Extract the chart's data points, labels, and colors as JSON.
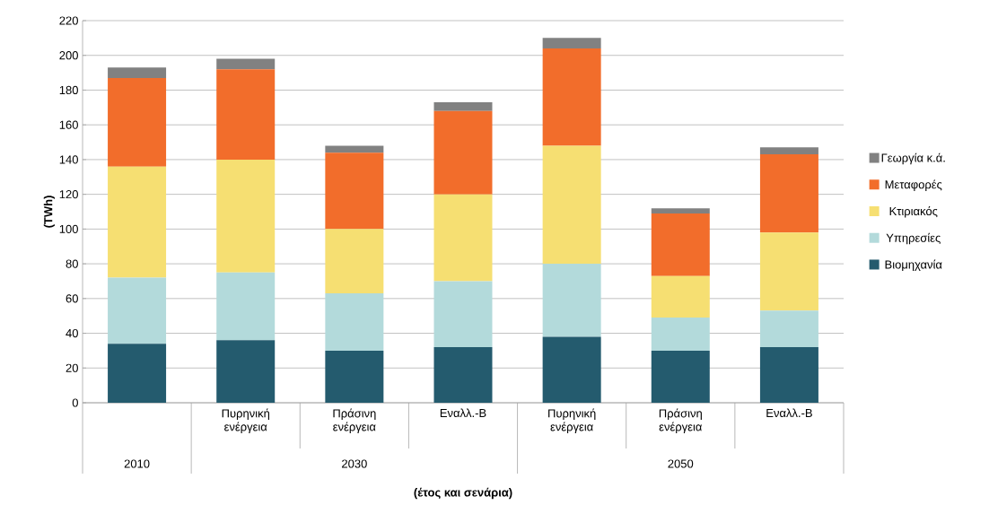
{
  "chart_data": {
    "type": "bar",
    "stacked": true,
    "xlabel": "(έτος και σενάρια)",
    "ylabel": "(TWh)",
    "categories": [
      null,
      "Πυρηνική ενέργεια",
      "Πράσινη ενέργεια",
      "Εναλλ.-Β",
      "Πυρηνική ενέργεια",
      "Πράσινη ενέργεια",
      "Εναλλ.-Β"
    ],
    "annotations": [
      "2010",
      "2030",
      "2050"
    ],
    "series": [
      {
        "name": "Βιομηχανία",
        "color": "#245b6e",
        "values": [
          34,
          36,
          30,
          32,
          38,
          30,
          32
        ]
      },
      {
        "name": "Υπηρεσίες",
        "color": "#b3dadb",
        "values": [
          38,
          39,
          33,
          38,
          42,
          19,
          21
        ]
      },
      {
        "name": "Κτιριακός",
        "color": "#f6df72",
        "values": [
          64,
          65,
          37,
          50,
          68,
          24,
          45
        ]
      },
      {
        "name": "Μεταφορές",
        "color": "#f26d2b",
        "values": [
          51,
          52,
          44,
          48,
          56,
          36,
          45
        ]
      },
      {
        "name": "Γεωργία κ.ά.",
        "color": "#818181",
        "values": [
          6,
          6,
          4,
          5,
          6,
          3,
          4
        ]
      }
    ],
    "ylim": [
      0,
      220
    ],
    "yticks": [
      0,
      20,
      40,
      60,
      80,
      100,
      120,
      140,
      160,
      180,
      200,
      220
    ],
    "grid": "y",
    "legend": "right"
  }
}
